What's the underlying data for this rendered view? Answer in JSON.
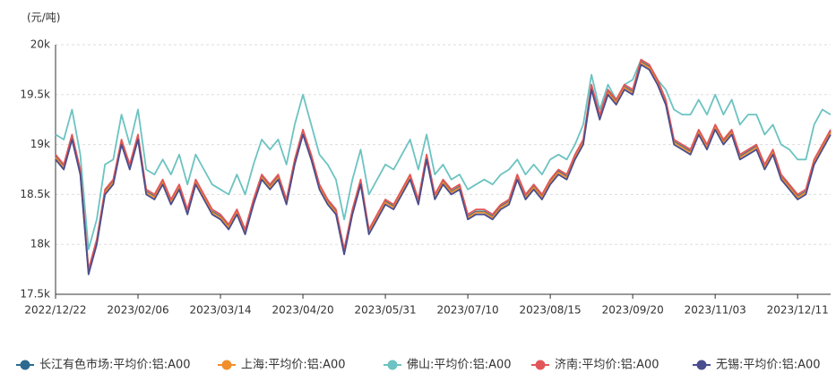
{
  "chart_data": {
    "type": "line",
    "y_label": "(元/吨)",
    "categories": [
      "2022/12/22",
      null,
      null,
      null,
      null,
      null,
      null,
      null,
      null,
      null,
      "2023/02/06",
      null,
      null,
      null,
      null,
      null,
      null,
      null,
      null,
      null,
      "2023/03/14",
      null,
      null,
      null,
      null,
      null,
      null,
      null,
      null,
      null,
      "2023/04/20",
      null,
      null,
      null,
      null,
      null,
      null,
      null,
      null,
      null,
      "2023/05/31",
      null,
      null,
      null,
      null,
      null,
      null,
      null,
      null,
      null,
      "2023/07/10",
      null,
      null,
      null,
      null,
      null,
      null,
      null,
      null,
      null,
      "2023/08/15",
      null,
      null,
      null,
      null,
      null,
      null,
      null,
      null,
      null,
      "2023/09/20",
      null,
      null,
      null,
      null,
      null,
      null,
      null,
      null,
      null,
      "2023/11/03",
      null,
      null,
      null,
      null,
      null,
      null,
      null,
      null,
      null,
      "2023/12/11",
      null,
      null,
      null,
      null
    ],
    "ylim": [
      17500,
      20000
    ],
    "yticks": [
      {
        "value": 17500,
        "label": "17.5k"
      },
      {
        "value": 18000,
        "label": "18k"
      },
      {
        "value": 18500,
        "label": "18.5k"
      },
      {
        "value": 19000,
        "label": "19k"
      },
      {
        "value": 19500,
        "label": "19.5k"
      },
      {
        "value": 20000,
        "label": "20k"
      }
    ],
    "grid": true,
    "legend": "bottom",
    "series": [
      {
        "name": "长江有色市场:平均价:铝:A00",
        "color": "#2b6a8e",
        "values": [
          18880,
          18780,
          19080,
          18730,
          17730,
          18030,
          18530,
          18630,
          19030,
          18780,
          19080,
          18530,
          18480,
          18630,
          18430,
          18580,
          18330,
          18630,
          18480,
          18330,
          18280,
          18180,
          18330,
          18130,
          18430,
          18680,
          18580,
          18680,
          18430,
          18830,
          19130,
          18880,
          18580,
          18430,
          18330,
          17930,
          18330,
          18630,
          18130,
          18280,
          18430,
          18380,
          18530,
          18680,
          18430,
          18880,
          18480,
          18630,
          18530,
          18580,
          18280,
          18330,
          18330,
          18280,
          18380,
          18430,
          18680,
          18480,
          18580,
          18480,
          18630,
          18730,
          18680,
          18880,
          19030,
          19580,
          19280,
          19530,
          19430,
          19580,
          19530,
          19830,
          19780,
          19630,
          19430,
          19030,
          18980,
          18930,
          19130,
          18980,
          19180,
          19030,
          19130,
          18880,
          18930,
          18980,
          18780,
          18930,
          18680,
          18580,
          18480,
          18530,
          18830,
          18980,
          19130
        ]
      },
      {
        "name": "上海:平均价:铝:A00",
        "color": "#f28e2b",
        "values": [
          18870,
          18770,
          19070,
          18720,
          17720,
          18020,
          18520,
          18620,
          19020,
          18770,
          19070,
          18520,
          18470,
          18620,
          18420,
          18570,
          18320,
          18620,
          18470,
          18320,
          18270,
          18170,
          18320,
          18120,
          18420,
          18670,
          18570,
          18670,
          18420,
          18820,
          19120,
          18870,
          18570,
          18420,
          18320,
          17920,
          18320,
          18620,
          18120,
          18270,
          18420,
          18370,
          18520,
          18670,
          18420,
          18870,
          18470,
          18620,
          18520,
          18570,
          18270,
          18320,
          18320,
          18270,
          18370,
          18420,
          18670,
          18470,
          18570,
          18470,
          18620,
          18720,
          18670,
          18870,
          19020,
          19570,
          19270,
          19520,
          19420,
          19570,
          19520,
          19820,
          19770,
          19620,
          19420,
          19020,
          18970,
          18920,
          19120,
          18970,
          19170,
          19020,
          19120,
          18870,
          18920,
          18970,
          18770,
          18920,
          18670,
          18570,
          18470,
          18520,
          18820,
          18970,
          19120
        ]
      },
      {
        "name": "佛山:平均价:铝:A00",
        "color": "#6cc3c1",
        "values": [
          19100,
          19050,
          19350,
          18900,
          17950,
          18250,
          18800,
          18850,
          19300,
          19000,
          19350,
          18750,
          18700,
          18850,
          18700,
          18900,
          18600,
          18900,
          18750,
          18600,
          18550,
          18500,
          18700,
          18500,
          18800,
          19050,
          18950,
          19050,
          18800,
          19200,
          19500,
          19200,
          18900,
          18800,
          18650,
          18250,
          18650,
          18950,
          18500,
          18650,
          18800,
          18750,
          18900,
          19050,
          18750,
          19100,
          18700,
          18800,
          18650,
          18700,
          18550,
          18600,
          18650,
          18600,
          18700,
          18750,
          18850,
          18700,
          18800,
          18700,
          18850,
          18900,
          18850,
          19000,
          19200,
          19700,
          19350,
          19600,
          19450,
          19600,
          19650,
          19850,
          19800,
          19650,
          19550,
          19350,
          19300,
          19300,
          19450,
          19300,
          19500,
          19300,
          19450,
          19200,
          19300,
          19300,
          19100,
          19200,
          19000,
          18950,
          18850,
          18850,
          19200,
          19350,
          19300
        ]
      },
      {
        "name": "济南:平均价:铝:A00",
        "color": "#e15759",
        "values": [
          18900,
          18800,
          19100,
          18750,
          17750,
          18050,
          18550,
          18650,
          19050,
          18800,
          19100,
          18550,
          18500,
          18650,
          18450,
          18600,
          18350,
          18650,
          18500,
          18350,
          18300,
          18200,
          18350,
          18150,
          18450,
          18700,
          18600,
          18700,
          18450,
          18850,
          19150,
          18900,
          18600,
          18450,
          18350,
          17950,
          18350,
          18650,
          18150,
          18300,
          18450,
          18400,
          18550,
          18700,
          18450,
          18900,
          18500,
          18650,
          18550,
          18600,
          18300,
          18350,
          18350,
          18300,
          18400,
          18450,
          18700,
          18500,
          18600,
          18500,
          18650,
          18750,
          18700,
          18900,
          19050,
          19600,
          19300,
          19550,
          19450,
          19600,
          19550,
          19850,
          19800,
          19650,
          19450,
          19050,
          19000,
          18950,
          19150,
          19000,
          19200,
          19050,
          19150,
          18900,
          18950,
          19000,
          18800,
          18950,
          18700,
          18600,
          18500,
          18550,
          18850,
          19000,
          19150
        ]
      },
      {
        "name": "无锡:平均价:铝:A00",
        "color": "#4a4e8c",
        "values": [
          18850,
          18750,
          19050,
          18700,
          17700,
          18000,
          18500,
          18600,
          19000,
          18750,
          19050,
          18500,
          18450,
          18600,
          18400,
          18550,
          18300,
          18600,
          18450,
          18300,
          18250,
          18150,
          18300,
          18100,
          18400,
          18650,
          18550,
          18650,
          18400,
          18800,
          19100,
          18850,
          18550,
          18400,
          18300,
          17900,
          18300,
          18600,
          18100,
          18250,
          18400,
          18350,
          18500,
          18650,
          18400,
          18850,
          18450,
          18600,
          18500,
          18550,
          18250,
          18300,
          18300,
          18250,
          18350,
          18400,
          18650,
          18450,
          18550,
          18450,
          18600,
          18700,
          18650,
          18850,
          19000,
          19550,
          19250,
          19500,
          19400,
          19550,
          19500,
          19800,
          19750,
          19600,
          19400,
          19000,
          18950,
          18900,
          19100,
          18950,
          19150,
          19000,
          19100,
          18850,
          18900,
          18950,
          18750,
          18900,
          18650,
          18550,
          18450,
          18500,
          18800,
          18950,
          19100
        ]
      }
    ]
  }
}
